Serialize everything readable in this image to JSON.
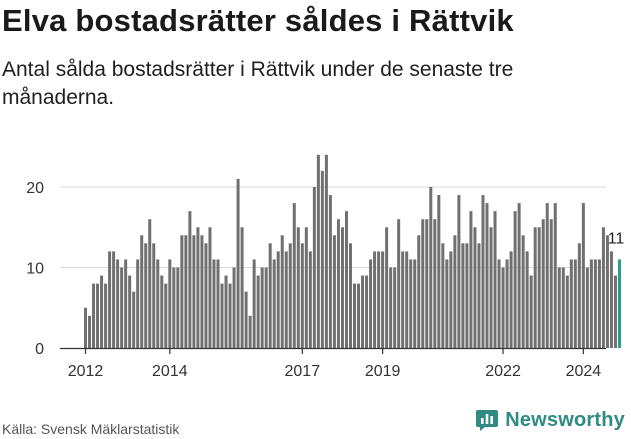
{
  "title": "Elva bostadsrätter såldes i Rättvik",
  "subtitle": "Antal sålda bostadsrätter i Rättvik under de senaste tre månaderna.",
  "source": "Källa: Svensk Mäklarstatistik",
  "brand": "Newsworthy",
  "colors": {
    "bar": "#707070",
    "highlight": "#2a9d8f",
    "axis": "#333333",
    "grid": "#d9d9d9",
    "brand": "#2f8b83"
  },
  "chart_data": {
    "type": "bar",
    "title": "Elva bostadsrätter såldes i Rättvik",
    "xlabel": "",
    "ylabel": "",
    "ylim": [
      0,
      25
    ],
    "yticks": [
      0,
      10,
      20
    ],
    "start": "2012-01",
    "xtick_labels": [
      "2012",
      "2014",
      "2017",
      "2019",
      "2022",
      "2024"
    ],
    "xtick_month_index": [
      0,
      21,
      54,
      74,
      104,
      124
    ],
    "highlight_label": "11",
    "values": [
      5,
      4,
      8,
      8,
      9,
      8,
      12,
      12,
      11,
      10,
      11,
      9,
      7,
      11,
      14,
      13,
      16,
      13,
      11,
      9,
      8,
      11,
      10,
      10,
      14,
      14,
      17,
      14,
      15,
      14,
      13,
      15,
      11,
      11,
      8,
      9,
      8,
      10,
      21,
      15,
      7,
      4,
      11,
      9,
      10,
      10,
      13,
      11,
      12,
      14,
      12,
      13,
      18,
      15,
      13,
      15,
      12,
      20,
      24,
      22,
      24,
      19,
      14,
      16,
      15,
      17,
      13,
      8,
      8,
      9,
      9,
      11,
      12,
      12,
      12,
      15,
      10,
      10,
      16,
      12,
      12,
      11,
      11,
      14,
      16,
      16,
      20,
      16,
      19,
      13,
      11,
      12,
      14,
      19,
      13,
      13,
      17,
      15,
      13,
      19,
      18,
      15,
      17,
      11,
      10,
      11,
      12,
      17,
      18,
      14,
      12,
      9,
      15,
      15,
      16,
      18,
      16,
      18,
      10,
      10,
      9,
      11,
      11,
      13,
      18,
      10,
      11,
      11,
      11,
      15,
      14,
      12,
      9,
      11
    ]
  }
}
